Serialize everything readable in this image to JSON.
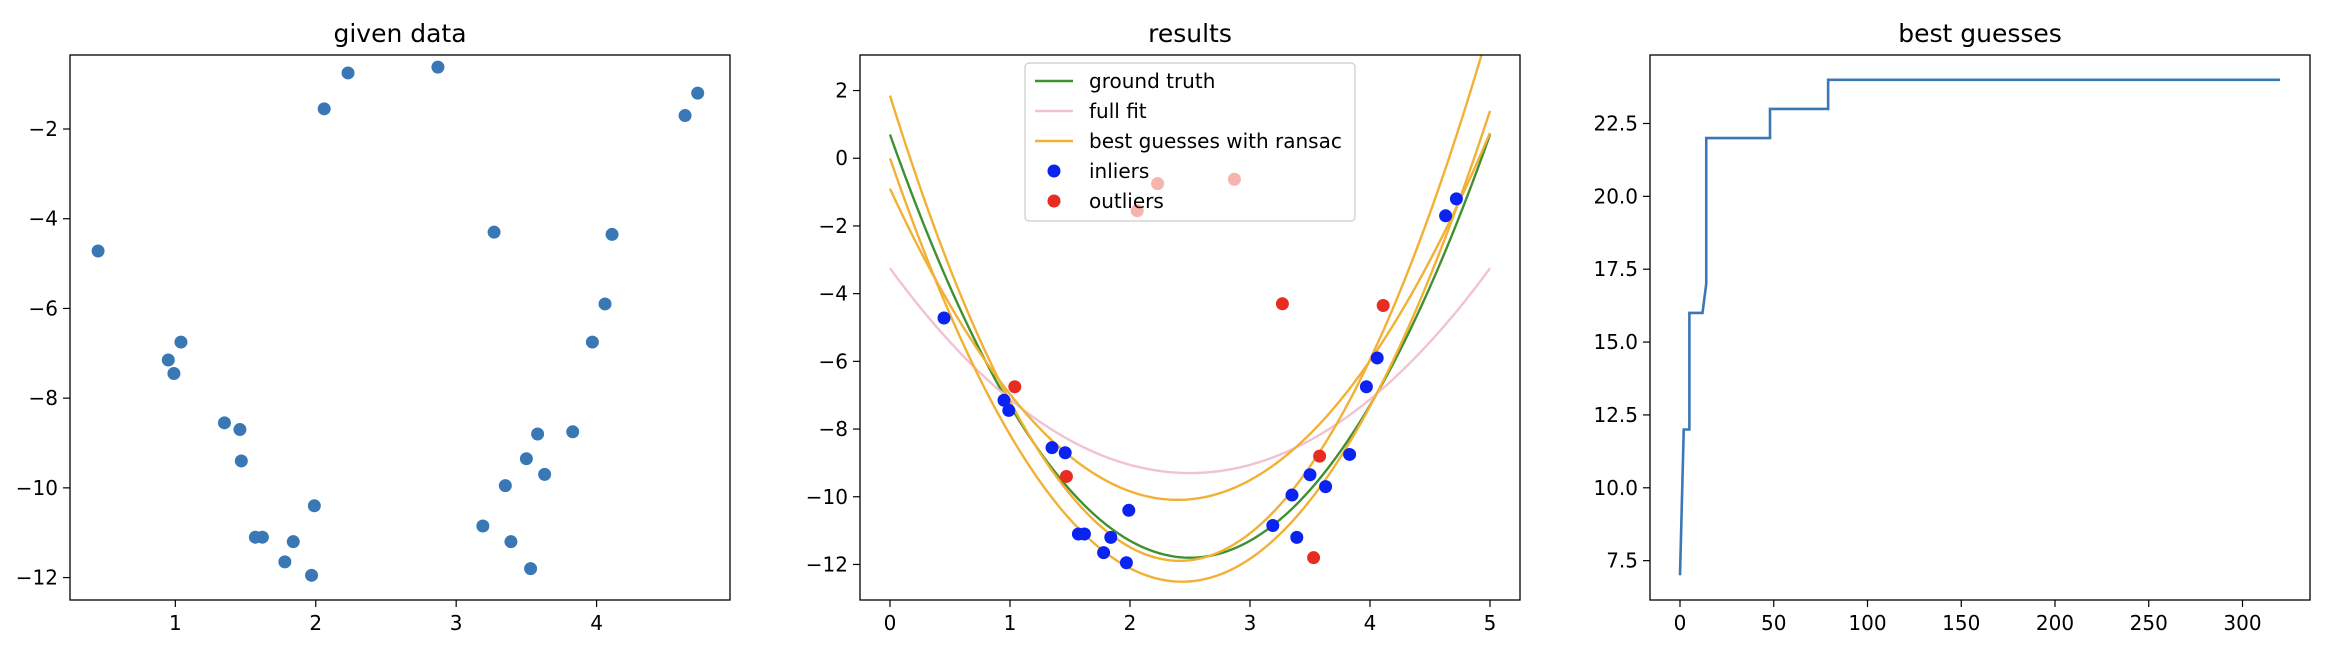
{
  "chart_data": [
    {
      "type": "scatter",
      "title": "given data",
      "xlim": [
        0.25,
        4.95
      ],
      "ylim": [
        -12.5,
        -0.35
      ],
      "xticks": [
        1,
        2,
        3,
        4
      ],
      "yticks": [
        -12,
        -10,
        -8,
        -6,
        -4,
        -2
      ],
      "color": "#3a78b5",
      "points": [
        [
          0.45,
          -4.72
        ],
        [
          0.95,
          -7.15
        ],
        [
          0.99,
          -7.45
        ],
        [
          1.04,
          -6.75
        ],
        [
          1.35,
          -8.55
        ],
        [
          1.46,
          -8.7
        ],
        [
          1.47,
          -9.4
        ],
        [
          1.57,
          -11.1
        ],
        [
          1.62,
          -11.1
        ],
        [
          1.78,
          -11.65
        ],
        [
          1.84,
          -11.2
        ],
        [
          1.97,
          -11.95
        ],
        [
          1.99,
          -10.4
        ],
        [
          2.06,
          -1.55
        ],
        [
          2.23,
          -0.75
        ],
        [
          2.87,
          -0.62
        ],
        [
          3.19,
          -10.85
        ],
        [
          3.27,
          -4.3
        ],
        [
          3.35,
          -9.95
        ],
        [
          3.39,
          -11.2
        ],
        [
          3.5,
          -9.35
        ],
        [
          3.53,
          -11.8
        ],
        [
          3.58,
          -8.8
        ],
        [
          3.63,
          -9.7
        ],
        [
          3.83,
          -8.75
        ],
        [
          3.97,
          -6.75
        ],
        [
          4.06,
          -5.9
        ],
        [
          4.11,
          -4.35
        ],
        [
          4.63,
          -1.7
        ],
        [
          4.72,
          -1.2
        ]
      ]
    },
    {
      "type": "line",
      "title": "results",
      "xlim": [
        -0.25,
        5.25
      ],
      "ylim": [
        -13.05,
        3.05
      ],
      "xticks": [
        0,
        1,
        2,
        3,
        4,
        5
      ],
      "yticks": [
        -12,
        -10,
        -8,
        -6,
        -4,
        -2,
        0,
        2
      ],
      "legend": {
        "position": "upper center",
        "entries": [
          {
            "label": "ground truth",
            "kind": "line",
            "color": "#3f9130"
          },
          {
            "label": "full fit",
            "kind": "line",
            "color": "#f2c2d2"
          },
          {
            "label": "best guesses with ransac",
            "kind": "line",
            "color": "#f2b035"
          },
          {
            "label": "inliers",
            "kind": "marker",
            "color": "#0a23f0"
          },
          {
            "label": "outliers",
            "kind": "marker",
            "color": "#e82c22"
          }
        ]
      },
      "curves": [
        {
          "name": "ground truth",
          "color": "#3f9130",
          "a": 2.0,
          "b": -10.0,
          "c": 0.7
        },
        {
          "name": "full fit",
          "color": "#f2c2d2",
          "a": 0.968,
          "b": -4.84,
          "c": -3.25
        },
        {
          "name": "best guesses with ransac",
          "color": "#f2b035",
          "a": 2.36,
          "b": -11.39,
          "c": 1.85
        },
        {
          "name": "best guesses with ransac",
          "color": "#f2b035",
          "a": 2.112,
          "b": -10.28,
          "c": 0.0
        },
        {
          "name": "best guesses with ransac",
          "color": "#f2b035",
          "a": 1.6,
          "b": -7.67,
          "c": -0.9
        }
      ],
      "inliers": [
        [
          0.45,
          -4.72
        ],
        [
          0.95,
          -7.15
        ],
        [
          0.99,
          -7.45
        ],
        [
          1.35,
          -8.55
        ],
        [
          1.46,
          -8.7
        ],
        [
          1.57,
          -11.1
        ],
        [
          1.62,
          -11.1
        ],
        [
          1.78,
          -11.65
        ],
        [
          1.84,
          -11.2
        ],
        [
          1.97,
          -11.95
        ],
        [
          1.99,
          -10.4
        ],
        [
          3.19,
          -10.85
        ],
        [
          3.35,
          -9.95
        ],
        [
          3.39,
          -11.2
        ],
        [
          3.5,
          -9.35
        ],
        [
          3.63,
          -9.7
        ],
        [
          3.83,
          -8.75
        ],
        [
          3.97,
          -6.75
        ],
        [
          4.06,
          -5.9
        ],
        [
          4.63,
          -1.7
        ],
        [
          4.72,
          -1.2
        ]
      ],
      "outliers": [
        [
          1.04,
          -6.75
        ],
        [
          1.47,
          -9.4
        ],
        [
          2.06,
          -1.55
        ],
        [
          2.23,
          -0.75
        ],
        [
          2.87,
          -0.62
        ],
        [
          3.27,
          -4.3
        ],
        [
          3.53,
          -11.8
        ],
        [
          3.58,
          -8.8
        ],
        [
          4.11,
          -4.35
        ]
      ],
      "hidden_outliers": [
        [
          2.06,
          -1.55
        ],
        [
          2.23,
          -0.75
        ],
        [
          2.87,
          -0.62
        ]
      ]
    },
    {
      "type": "line",
      "title": "best guesses",
      "xlim": [
        -16,
        336
      ],
      "ylim": [
        6.15,
        24.85
      ],
      "xticks": [
        0,
        50,
        100,
        150,
        200,
        250,
        300
      ],
      "yticks": [
        7.5,
        10.0,
        12.5,
        15.0,
        17.5,
        20.0,
        22.5
      ],
      "color": "#3a78b5",
      "steps": [
        [
          0,
          7
        ],
        [
          2,
          12
        ],
        [
          5,
          12
        ],
        [
          5,
          16
        ],
        [
          12,
          16
        ],
        [
          14,
          17
        ],
        [
          14,
          22
        ],
        [
          48,
          22
        ],
        [
          48,
          23
        ],
        [
          79,
          23
        ],
        [
          79,
          24
        ],
        [
          320,
          24
        ]
      ]
    }
  ]
}
